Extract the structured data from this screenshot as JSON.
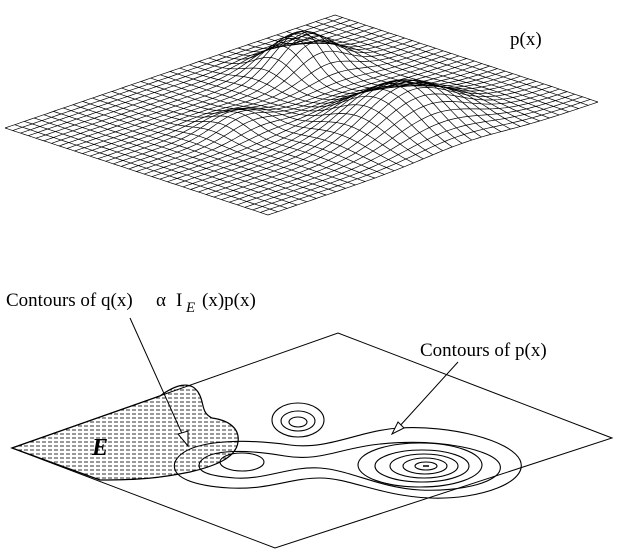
{
  "surface": {
    "label": "p(x)"
  },
  "contours": {
    "q_label": {
      "prefix": "Contours of q(x)",
      "symbol": "α",
      "indicator": "I",
      "subscript": "E",
      "suffix": "(x)p(x)"
    },
    "p_label": "Contours of p(x)",
    "region_label": "E"
  }
}
